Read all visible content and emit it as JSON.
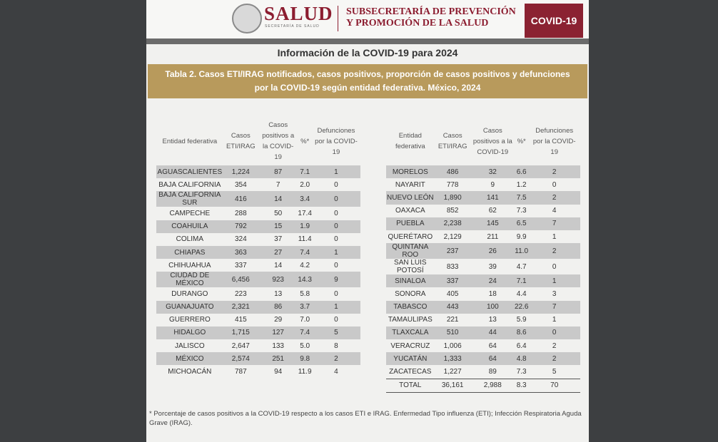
{
  "header": {
    "logo": "SALUD",
    "logo_sub": "SECRETARÍA DE SALUD",
    "subsecretaria": "SUBSECRETARÍA DE PREVENCIÓN Y PROMOCIÓN DE LA SALUD",
    "badge": "COVID-19"
  },
  "title": "Información de la COVID-19 para 2024",
  "caption": "Tabla 2. Casos ETI/IRAG notificados, casos positivos, proporción de casos positivos y defunciones por la COVID-19 según entidad federativa. México, 2024",
  "columns": [
    "Entidad federativa",
    "Casos ETI/IRAG",
    "Casos positivos a la COVID-19",
    "%*",
    "Defunciones por la COVID-19"
  ],
  "left_table": {
    "rows": [
      [
        "AGUASCALIENTES",
        "1,224",
        "87",
        "7.1",
        "1"
      ],
      [
        "BAJA CALIFORNIA",
        "354",
        "7",
        "2.0",
        "0"
      ],
      [
        "BAJA CALIFORNIA SUR",
        "416",
        "14",
        "3.4",
        "0"
      ],
      [
        "CAMPECHE",
        "288",
        "50",
        "17.4",
        "0"
      ],
      [
        "COAHUILA",
        "792",
        "15",
        "1.9",
        "0"
      ],
      [
        "COLIMA",
        "324",
        "37",
        "11.4",
        "0"
      ],
      [
        "CHIAPAS",
        "363",
        "27",
        "7.4",
        "1"
      ],
      [
        "CHIHUAHUA",
        "337",
        "14",
        "4.2",
        "0"
      ],
      [
        "CIUDAD DE MÉXICO",
        "6,456",
        "923",
        "14.3",
        "9"
      ],
      [
        "DURANGO",
        "223",
        "13",
        "5.8",
        "0"
      ],
      [
        "GUANAJUATO",
        "2,321",
        "86",
        "3.7",
        "1"
      ],
      [
        "GUERRERO",
        "415",
        "29",
        "7.0",
        "0"
      ],
      [
        "HIDALGO",
        "1,715",
        "127",
        "7.4",
        "5"
      ],
      [
        "JALISCO",
        "2,647",
        "133",
        "5.0",
        "8"
      ],
      [
        "MÉXICO",
        "2,574",
        "251",
        "9.8",
        "2"
      ],
      [
        "MICHOACÁN",
        "787",
        "94",
        "11.9",
        "4"
      ]
    ]
  },
  "right_table": {
    "rows": [
      [
        "MORELOS",
        "486",
        "32",
        "6.6",
        "2"
      ],
      [
        "NAYARIT",
        "778",
        "9",
        "1.2",
        "0"
      ],
      [
        "NUEVO LEÓN",
        "1,890",
        "141",
        "7.5",
        "2"
      ],
      [
        "OAXACA",
        "852",
        "62",
        "7.3",
        "4"
      ],
      [
        "PUEBLA",
        "2,238",
        "145",
        "6.5",
        "7"
      ],
      [
        "QUERÉTARO",
        "2,129",
        "211",
        "9.9",
        "1"
      ],
      [
        "QUINTANA ROO",
        "237",
        "26",
        "11.0",
        "2"
      ],
      [
        "SAN LUIS POTOSÍ",
        "833",
        "39",
        "4.7",
        "0"
      ],
      [
        "SINALOA",
        "337",
        "24",
        "7.1",
        "1"
      ],
      [
        "SONORA",
        "405",
        "18",
        "4.4",
        "3"
      ],
      [
        "TABASCO",
        "443",
        "100",
        "22.6",
        "7"
      ],
      [
        "TAMAULIPAS",
        "221",
        "13",
        "5.9",
        "1"
      ],
      [
        "TLAXCALA",
        "510",
        "44",
        "8.6",
        "0"
      ],
      [
        "VERACRUZ",
        "1,006",
        "64",
        "6.4",
        "2"
      ],
      [
        "YUCATÁN",
        "1,333",
        "64",
        "4.8",
        "2"
      ],
      [
        "ZACATECAS",
        "1,227",
        "89",
        "7.3",
        "5"
      ]
    ],
    "total": [
      "TOTAL",
      "36,161",
      "2,988",
      "8.3",
      "70"
    ]
  },
  "footnote": "* Porcentaje de casos positivos a la COVID-19 respecto a los casos ETI e IRAG. Enfermedad Tipo influenza (ETI); Infección Respiratoria Aguda Grave (IRAG)."
}
